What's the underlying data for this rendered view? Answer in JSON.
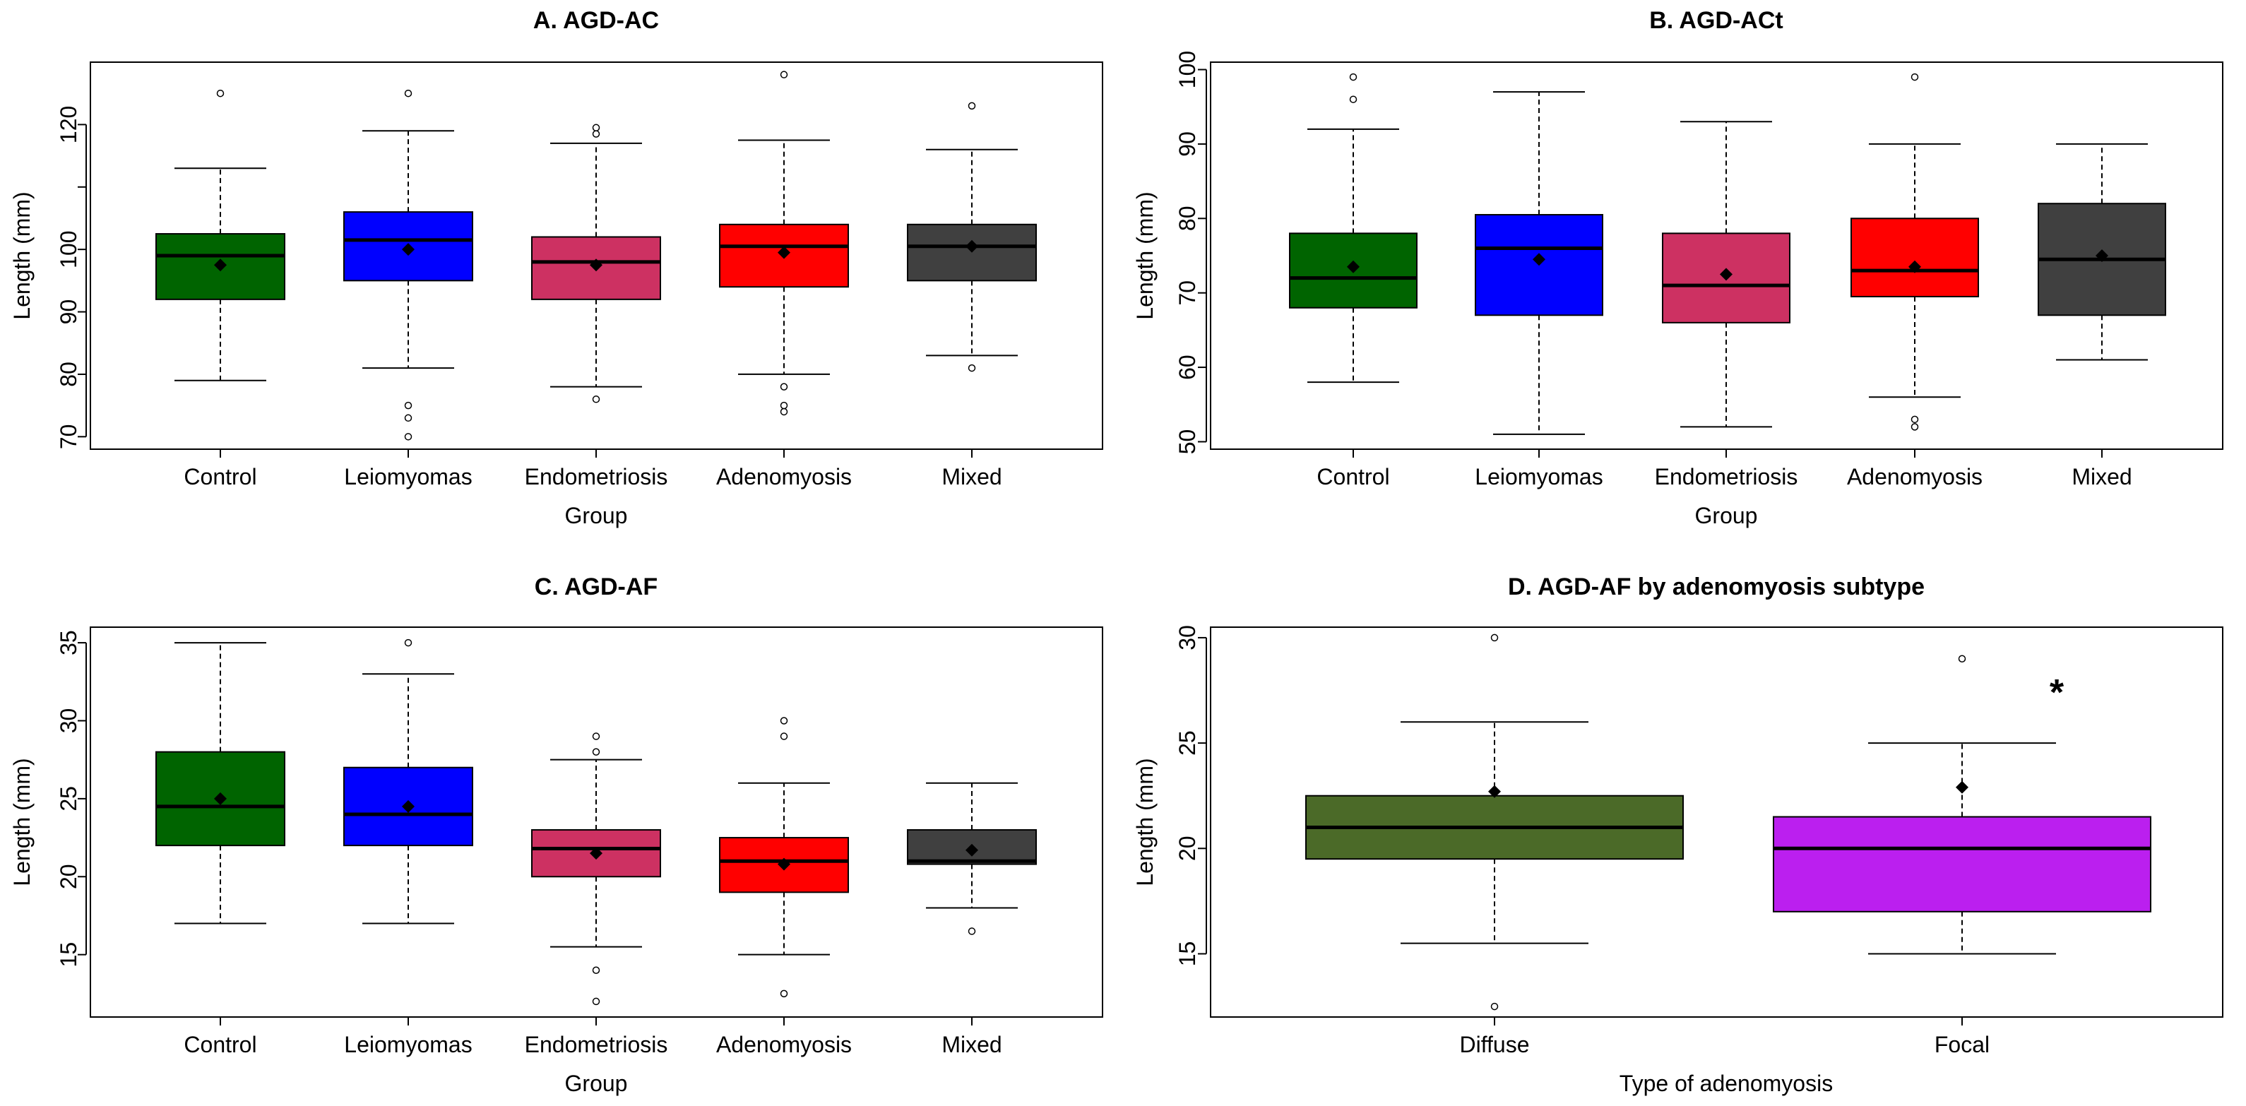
{
  "chart_data": [
    {
      "id": "A",
      "type": "boxplot",
      "title": "A. AGD-AC",
      "xlabel": "Group",
      "ylabel": "Length (mm)",
      "ylim": [
        68,
        130
      ],
      "yticks": [
        70,
        80,
        90,
        100,
        120
      ],
      "extra_ticks": [
        110
      ],
      "categories": [
        "Control",
        "Leiomyomas",
        "Endometriosis",
        "Adenomyosis",
        "Mixed"
      ],
      "boxes": [
        {
          "q1": 92,
          "median": 99,
          "q3": 102.5,
          "whisker_low": 79,
          "whisker_high": 113,
          "mean": 97.5,
          "outliers": [
            125
          ],
          "color": "#006400"
        },
        {
          "q1": 95,
          "median": 101.5,
          "q3": 106,
          "whisker_low": 81,
          "whisker_high": 119,
          "mean": 100,
          "outliers": [
            125,
            75,
            73,
            70
          ],
          "color": "#0000FF"
        },
        {
          "q1": 92,
          "median": 98,
          "q3": 102,
          "whisker_low": 78,
          "whisker_high": 117,
          "mean": 97.5,
          "outliers": [
            119.5,
            118.5,
            76
          ],
          "color": "#CD3162"
        },
        {
          "q1": 94,
          "median": 100.5,
          "q3": 104,
          "whisker_low": 80,
          "whisker_high": 117.5,
          "mean": 99.5,
          "outliers": [
            128,
            78,
            75,
            74
          ],
          "color": "#FF0000"
        },
        {
          "q1": 95,
          "median": 100.5,
          "q3": 104,
          "whisker_low": 83,
          "whisker_high": 116,
          "mean": 100.5,
          "outliers": [
            123,
            81
          ],
          "color": "#404040"
        }
      ],
      "annotations": []
    },
    {
      "id": "B",
      "type": "boxplot",
      "title": "B. AGD-ACt",
      "xlabel": "Group",
      "ylabel": "Length (mm)",
      "ylim": [
        49,
        101
      ],
      "yticks": [
        50,
        60,
        70,
        80,
        90,
        100
      ],
      "extra_ticks": [],
      "categories": [
        "Control",
        "Leiomyomas",
        "Endometriosis",
        "Adenomyosis",
        "Mixed"
      ],
      "boxes": [
        {
          "q1": 68,
          "median": 72,
          "q3": 78,
          "whisker_low": 58,
          "whisker_high": 92,
          "mean": 73.5,
          "outliers": [
            99,
            96
          ],
          "color": "#006400"
        },
        {
          "q1": 67,
          "median": 76,
          "q3": 80.5,
          "whisker_low": 51,
          "whisker_high": 97,
          "mean": 74.5,
          "outliers": [],
          "color": "#0000FF"
        },
        {
          "q1": 66,
          "median": 71,
          "q3": 78,
          "whisker_low": 52,
          "whisker_high": 93,
          "mean": 72.5,
          "outliers": [],
          "color": "#CD3162"
        },
        {
          "q1": 69.5,
          "median": 73,
          "q3": 80,
          "whisker_low": 56,
          "whisker_high": 90,
          "mean": 73.5,
          "outliers": [
            99,
            53,
            52
          ],
          "color": "#FF0000"
        },
        {
          "q1": 67,
          "median": 74.5,
          "q3": 82,
          "whisker_low": 61,
          "whisker_high": 90,
          "mean": 75,
          "outliers": [],
          "color": "#404040"
        }
      ],
      "annotations": []
    },
    {
      "id": "C",
      "type": "boxplot",
      "title": "C. AGD-AF",
      "xlabel": "Group",
      "ylabel": "Length (mm)",
      "ylim": [
        11,
        36
      ],
      "yticks": [
        15,
        20,
        25,
        30,
        35
      ],
      "extra_ticks": [],
      "categories": [
        "Control",
        "Leiomyomas",
        "Endometriosis",
        "Adenomyosis",
        "Mixed"
      ],
      "boxes": [
        {
          "q1": 22,
          "median": 24.5,
          "q3": 28,
          "whisker_low": 17,
          "whisker_high": 35,
          "mean": 25,
          "outliers": [],
          "color": "#006400"
        },
        {
          "q1": 22,
          "median": 24,
          "q3": 27,
          "whisker_low": 17,
          "whisker_high": 33,
          "mean": 24.5,
          "outliers": [
            35
          ],
          "color": "#0000FF"
        },
        {
          "q1": 20,
          "median": 21.8,
          "q3": 23,
          "whisker_low": 15.5,
          "whisker_high": 27.5,
          "mean": 21.5,
          "outliers": [
            29,
            28,
            14,
            12
          ],
          "color": "#CD3162"
        },
        {
          "q1": 19,
          "median": 21,
          "q3": 22.5,
          "whisker_low": 15,
          "whisker_high": 26,
          "mean": 20.8,
          "outliers": [
            30,
            29,
            12.5
          ],
          "color": "#FF0000"
        },
        {
          "q1": 20.8,
          "median": 21,
          "q3": 23,
          "whisker_low": 18,
          "whisker_high": 26,
          "mean": 21.7,
          "outliers": [
            16.5
          ],
          "color": "#404040"
        }
      ],
      "annotations": []
    },
    {
      "id": "D",
      "type": "boxplot",
      "title": "D. AGD-AF by adenomyosis subtype",
      "xlabel": "Type of adenomyosis",
      "ylabel": "Length (mm)",
      "ylim": [
        12,
        30.5
      ],
      "yticks": [
        15,
        20,
        25,
        30
      ],
      "extra_ticks": [],
      "categories": [
        "Diffuse",
        "Focal"
      ],
      "boxes": [
        {
          "q1": 19.5,
          "median": 21,
          "q3": 22.5,
          "whisker_low": 15.5,
          "whisker_high": 26,
          "mean": 22.7,
          "outliers": [
            30,
            12.5
          ],
          "color": "#4B6A28"
        },
        {
          "q1": 17,
          "median": 20,
          "q3": 21.5,
          "whisker_low": 15,
          "whisker_high": 25,
          "mean": 22.9,
          "outliers": [
            29
          ],
          "color": "#BB1FEF"
        }
      ],
      "annotations": [
        {
          "text": "*",
          "x": 1.2,
          "y": 27.8
        }
      ]
    }
  ]
}
